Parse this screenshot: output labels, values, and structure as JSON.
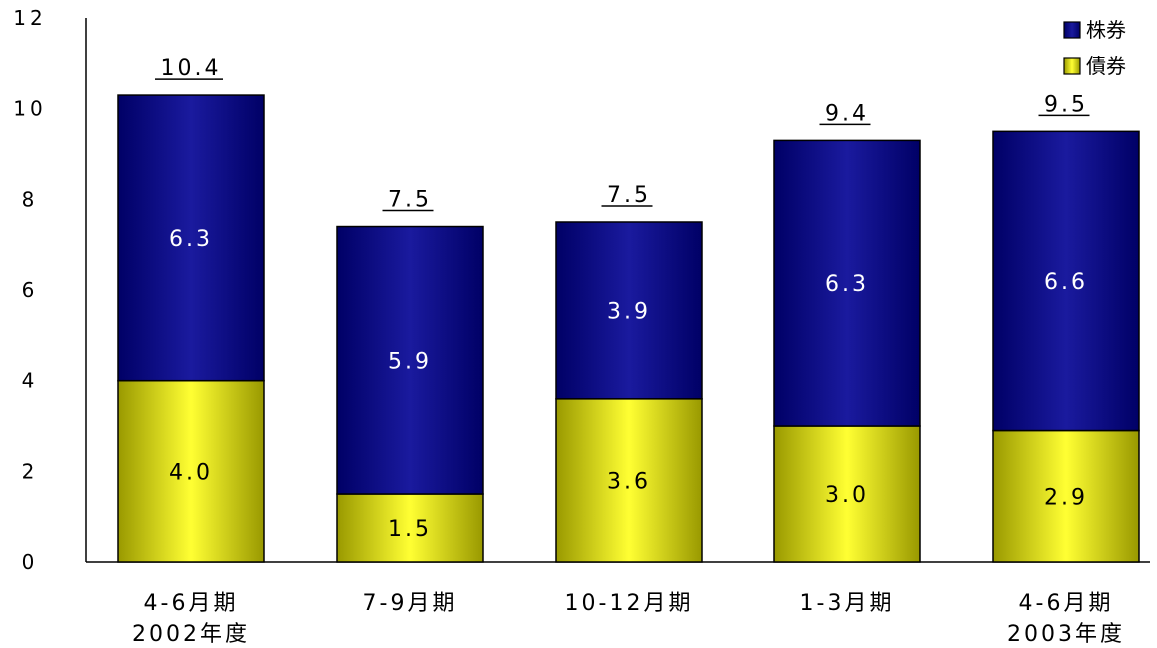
{
  "chart_data": {
    "type": "bar",
    "stacked": true,
    "categories": [
      [
        "4-6月期",
        "2002年度"
      ],
      [
        "7-9月期"
      ],
      [
        "10-12月期"
      ],
      [
        "1-3月期"
      ],
      [
        "4-6月期",
        "2003年度"
      ]
    ],
    "series": [
      {
        "name": "債券",
        "values": [
          4.0,
          1.5,
          3.6,
          3.0,
          2.9
        ],
        "label_color": "#000000"
      },
      {
        "name": "株券",
        "values": [
          6.3,
          5.9,
          3.9,
          6.3,
          6.6
        ],
        "label_color": "#ffffff"
      }
    ],
    "value_labels": [
      [
        "4.0",
        "1.5",
        "3.6",
        "3.0",
        "2.9"
      ],
      [
        "6.3",
        "5.9",
        "3.9",
        "6.3",
        "6.6"
      ]
    ],
    "totals": [
      "10.4",
      "7.5",
      "7.5",
      "9.4",
      "9.5"
    ],
    "total_values": [
      10.3,
      7.4,
      7.5,
      9.3,
      9.5
    ],
    "ylim": [
      0,
      12
    ],
    "yticks": [
      "0",
      "2",
      "4",
      "6",
      "8",
      "10",
      "12"
    ],
    "ytick_values": [
      0,
      2,
      4,
      6,
      8,
      10,
      12
    ],
    "legend": [
      "株券",
      "債券"
    ],
    "legend_position": "top-right",
    "grid": false,
    "colors": {
      "株券": [
        "#000066",
        "#1a1a9e",
        "#000066"
      ],
      "債券": [
        "#999900",
        "#ffff33",
        "#999900"
      ]
    }
  }
}
